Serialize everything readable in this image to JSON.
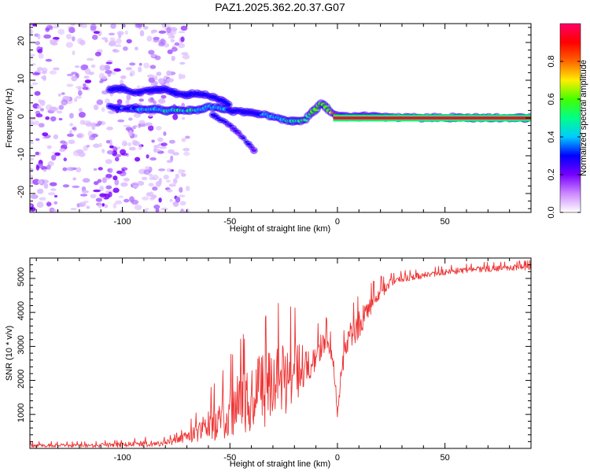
{
  "title": "PAZ1.2025.362.20.37.G07",
  "chart_data": [
    {
      "type": "heatmap",
      "name": "spectrogram",
      "xlabel": "Height of straight line (km)",
      "ylabel": "Frequency (Hz)",
      "xlim": [
        -143,
        90
      ],
      "ylim": [
        -25,
        25
      ],
      "xticks": [
        -100,
        -50,
        0,
        50
      ],
      "yticks": [
        -20,
        -10,
        0,
        10,
        20
      ],
      "xtick_labels": [
        "-100",
        "-50",
        "0",
        "50"
      ],
      "ytick_labels": [
        "-20",
        "-10",
        "0",
        "10",
        "20"
      ],
      "colorbar": {
        "label": "Normalized spectral amplitude",
        "range": [
          0,
          1
        ],
        "ticks": [
          0.0,
          0.2,
          0.4,
          0.6,
          0.8
        ],
        "tick_labels": [
          "0.0",
          "0.2",
          "0.4",
          "0.6",
          "0.8"
        ],
        "colormap": [
          "#ffffff",
          "#cc88ff",
          "#7700ff",
          "#0000ff",
          "#00ccff",
          "#00ff88",
          "#44ff00",
          "#ffee00",
          "#ff6600",
          "#ff0000",
          "#ff0066"
        ]
      },
      "noise_region_x": [
        -143,
        -75
      ],
      "signal_track": {
        "height_km": [
          -106,
          -100,
          -95,
          -90,
          -85,
          -80,
          -75,
          -70,
          -65,
          -60,
          -55,
          -50,
          -45,
          -40,
          -35,
          -30,
          -25,
          -20,
          -15,
          -10,
          -7,
          -5,
          -3,
          0,
          5,
          10,
          15,
          20,
          25,
          30,
          35,
          40,
          45,
          50,
          55,
          60,
          70,
          80,
          90
        ],
        "freq_hz": [
          3,
          2.5,
          2.6,
          2.3,
          2.4,
          2.0,
          2.2,
          2.0,
          1.9,
          3.0,
          2.6,
          2.0,
          1.7,
          1.5,
          1.0,
          0.4,
          -0.5,
          -1.0,
          -0.5,
          2.5,
          4.0,
          2.8,
          1.5,
          0.6,
          0.5,
          0.4,
          0.4,
          0.3,
          0.3,
          0.2,
          0.2,
          0.1,
          0.1,
          0.0,
          0.0,
          0.0,
          0.0,
          0.0,
          0.0
        ],
        "amplitude": [
          0.3,
          0.35,
          0.35,
          0.4,
          0.4,
          0.45,
          0.45,
          0.45,
          0.4,
          0.4,
          0.4,
          0.35,
          0.35,
          0.3,
          0.35,
          0.4,
          0.45,
          0.5,
          0.55,
          0.6,
          0.6,
          0.6,
          0.7,
          0.85,
          0.85,
          0.9,
          0.9,
          0.8,
          0.55,
          0.55,
          0.55,
          0.55,
          0.55,
          0.6,
          0.9,
          0.95,
          0.95,
          0.95,
          0.95
        ]
      },
      "secondary_track": {
        "height_km": [
          -106,
          -100,
          -95,
          -90,
          -80,
          -75,
          -70,
          -65,
          -60,
          -55,
          -50
        ],
        "freq_hz": [
          7.5,
          7.8,
          6.5,
          7.2,
          7.5,
          6.5,
          6.2,
          6.5,
          6.0,
          5.0,
          3.5
        ],
        "amplitude": [
          0.3,
          0.3,
          0.25,
          0.3,
          0.3,
          0.3,
          0.3,
          0.3,
          0.3,
          0.3,
          0.3
        ]
      },
      "descending_track": {
        "height_km": [
          -58,
          -54,
          -50,
          -46,
          -42,
          -38
        ],
        "freq_hz": [
          1.0,
          -0.5,
          -2.0,
          -4.0,
          -6.5,
          -9.0
        ],
        "amplitude": [
          0.3,
          0.3,
          0.25,
          0.25,
          0.25,
          0.2
        ]
      }
    },
    {
      "type": "line",
      "name": "snr",
      "xlabel": "Height of straight line (km)",
      "ylabel": "SNR (10 * v/v)",
      "xlim": [
        -143,
        90
      ],
      "ylim": [
        0,
        5600
      ],
      "xticks": [
        -100,
        -50,
        0,
        50
      ],
      "yticks": [
        1000,
        2000,
        3000,
        4000,
        5000
      ],
      "xtick_labels": [
        "-100",
        "-50",
        "0",
        "50"
      ],
      "ytick_labels": [
        "1000",
        "2000",
        "3000",
        "4000",
        "5000"
      ],
      "color": "#ee3333",
      "series": [
        {
          "name": "SNR",
          "x": [
            -143,
            -120,
            -100,
            -90,
            -80,
            -75,
            -70,
            -65,
            -60,
            -55,
            -50,
            -45,
            -40,
            -35,
            -30,
            -25,
            -20,
            -15,
            -10,
            -7,
            -5,
            -3,
            -1,
            0,
            2,
            5,
            10,
            15,
            20,
            25,
            30,
            40,
            50,
            60,
            70,
            80,
            90
          ],
          "trend": [
            90,
            90,
            110,
            140,
            170,
            230,
            350,
            500,
            700,
            950,
            1200,
            1400,
            1600,
            1800,
            1900,
            2100,
            2300,
            2550,
            2800,
            3100,
            3200,
            2900,
            1700,
            1000,
            2400,
            3300,
            3700,
            4200,
            4600,
            4900,
            5000,
            5100,
            5200,
            5250,
            5300,
            5320,
            5350
          ],
          "spread": [
            60,
            60,
            80,
            100,
            100,
            120,
            180,
            350,
            500,
            700,
            900,
            1000,
            1100,
            1200,
            1200,
            1200,
            1000,
            700,
            500,
            400,
            350,
            300,
            200,
            100,
            400,
            500,
            450,
            350,
            250,
            150,
            120,
            100,
            100,
            100,
            100,
            100,
            100
          ]
        }
      ]
    }
  ]
}
